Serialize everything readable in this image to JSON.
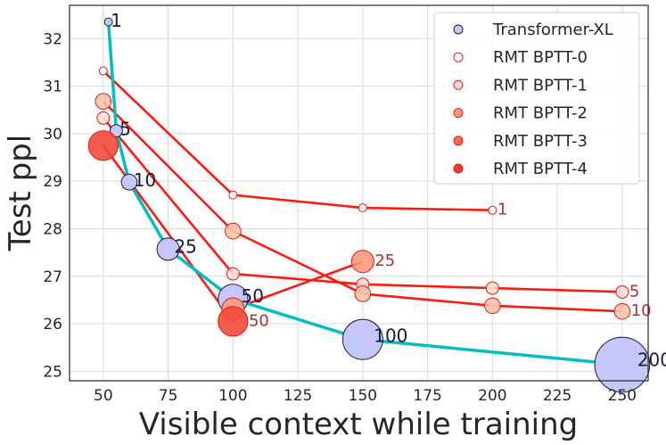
{
  "chart_data": {
    "type": "scatter",
    "xlabel": "Visible context while training",
    "ylabel": "Test ppl",
    "xlim": [
      37,
      260
    ],
    "ylim": [
      24.8,
      32.7
    ],
    "xticks": [
      50,
      75,
      100,
      125,
      150,
      175,
      200,
      225,
      250
    ],
    "yticks": [
      25,
      26,
      27,
      28,
      29,
      30,
      31,
      32
    ],
    "grid": true,
    "legend_position": "top-right",
    "series": [
      {
        "name": "Transformer-XL",
        "color": "#00bfc4",
        "fill": "#c5c7fb",
        "edge": "#1a1a3a",
        "points": [
          {
            "x": 52,
            "y": 32.35,
            "size": 1,
            "label": "1"
          },
          {
            "x": 55,
            "y": 30.06,
            "size": 5,
            "label": "5"
          },
          {
            "x": 60,
            "y": 28.98,
            "size": 10,
            "label": "10"
          },
          {
            "x": 75,
            "y": 27.57,
            "size": 25,
            "label": "25"
          },
          {
            "x": 100,
            "y": 26.52,
            "size": 50,
            "label": "50"
          },
          {
            "x": 150,
            "y": 25.67,
            "size": 100,
            "label": "100"
          },
          {
            "x": 250,
            "y": 25.14,
            "size": 200,
            "label": "200"
          }
        ]
      },
      {
        "name": "RMT BPTT-0",
        "color": "#ff1a0f",
        "fill": "#ffffff",
        "edge": "#e81a12",
        "points": [
          {
            "x": 50,
            "y": 31.32,
            "size": 1,
            "label": ""
          },
          {
            "x": 100,
            "y": 28.71,
            "size": 1,
            "label": ""
          },
          {
            "x": 150,
            "y": 28.44,
            "size": 1,
            "label": ""
          },
          {
            "x": 200,
            "y": 28.39,
            "size": 1,
            "label": "1"
          }
        ]
      },
      {
        "name": "RMT BPTT-1",
        "color": "#ff1a0f",
        "fill": "#fde0d6",
        "edge": "#e81a12",
        "points": [
          {
            "x": 50,
            "y": 30.33,
            "size": 5,
            "label": ""
          },
          {
            "x": 100,
            "y": 27.05,
            "size": 5,
            "label": ""
          },
          {
            "x": 150,
            "y": 26.83,
            "size": 5,
            "label": ""
          },
          {
            "x": 200,
            "y": 26.75,
            "size": 5,
            "label": ""
          },
          {
            "x": 250,
            "y": 26.67,
            "size": 5,
            "label": "5"
          }
        ]
      },
      {
        "name": "RMT BPTT-2",
        "color": "#ff1a0f",
        "fill": "#fcc3ad",
        "edge": "#e81a12",
        "points": [
          {
            "x": 50,
            "y": 30.68,
            "size": 10,
            "label": ""
          },
          {
            "x": 100,
            "y": 27.95,
            "size": 10,
            "label": ""
          },
          {
            "x": 150,
            "y": 26.63,
            "size": 10,
            "label": ""
          },
          {
            "x": 200,
            "y": 26.38,
            "size": 10,
            "label": ""
          },
          {
            "x": 250,
            "y": 26.26,
            "size": 10,
            "label": "10"
          }
        ]
      },
      {
        "name": "RMT BPTT-3",
        "color": "#ff1a0f",
        "fill": "#fc9a7c",
        "edge": "#e81a12",
        "points": [
          {
            "x": 100,
            "y": 26.31,
            "size": 25,
            "label": ""
          },
          {
            "x": 150,
            "y": 27.31,
            "size": 25,
            "label": "25"
          }
        ]
      },
      {
        "name": "RMT BPTT-4",
        "color": "#ff1a0f",
        "fill": "#f24a3a",
        "edge": "#e81a12",
        "points": [
          {
            "x": 50,
            "y": 29.75,
            "size": 50,
            "label": ""
          },
          {
            "x": 100,
            "y": 26.05,
            "size": 50,
            "label": "50"
          }
        ]
      }
    ]
  },
  "colors": {
    "grid": "#d9d9d9",
    "axis": "#262626",
    "label_dark": "#1a1a3a",
    "label_red": "#a83232",
    "legend_fill_bptt1": "#fde0d6",
    "legend_fill_bptt2": "#fc9a7c",
    "legend_fill_bptt3": "#fb6a4a",
    "legend_fill_bptt4": "#ef3b2c"
  }
}
